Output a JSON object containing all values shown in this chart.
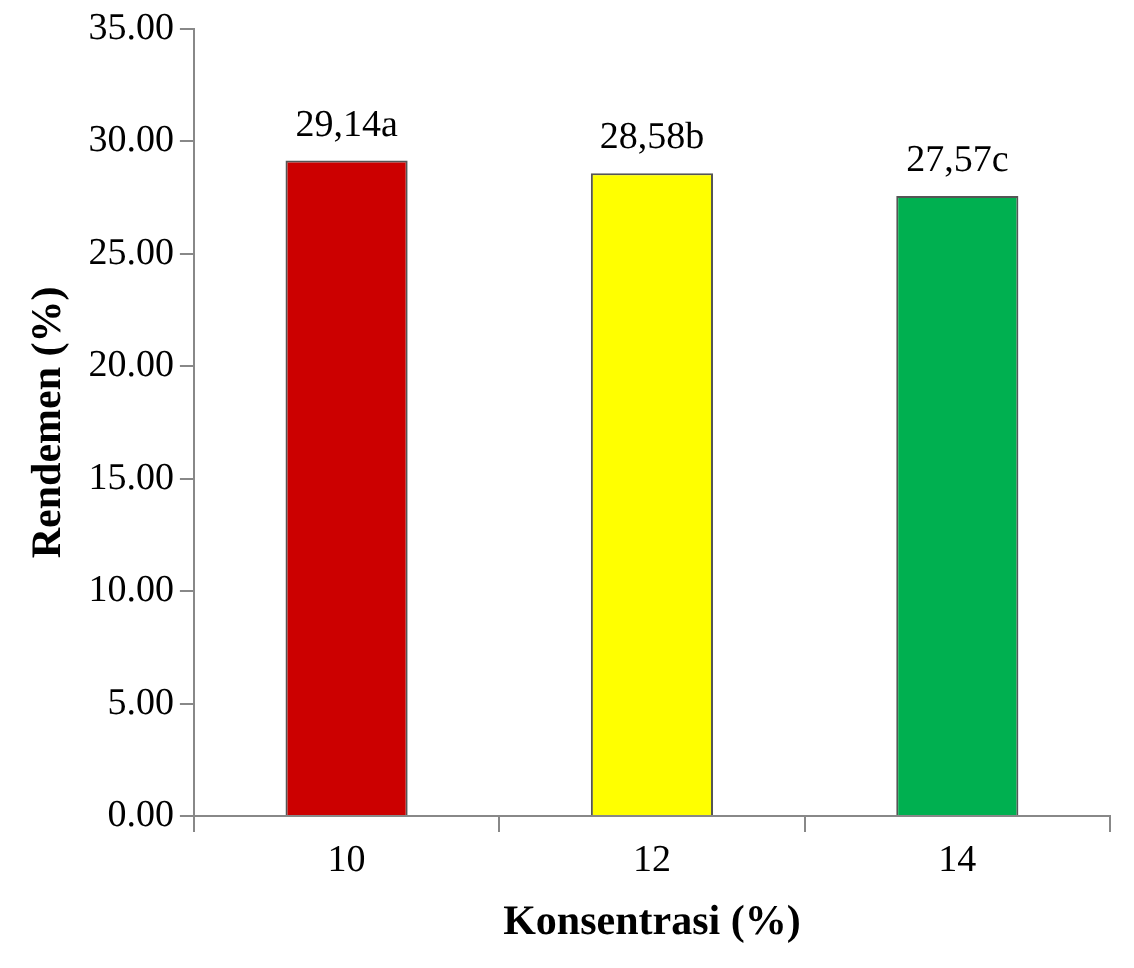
{
  "chart_data": {
    "type": "bar",
    "xlabel": "Konsentrasi (%)",
    "ylabel": "Rendemen (%)",
    "categories": [
      "10",
      "12",
      "14"
    ],
    "values": [
      29.14,
      28.58,
      27.57
    ],
    "colors": [
      "#cc0000",
      "#ffff00",
      "#00b050"
    ],
    "value_labels": [
      "29,14a",
      "28,58b",
      "27,57c"
    ],
    "ylim": [
      0,
      35
    ],
    "yticks": [
      {
        "value": 0,
        "label": "0.00"
      },
      {
        "value": 5,
        "label": "5.00"
      },
      {
        "value": 10,
        "label": "10.00"
      },
      {
        "value": 15,
        "label": "15.00"
      },
      {
        "value": 20,
        "label": "20.00"
      },
      {
        "value": 25,
        "label": "25.00"
      },
      {
        "value": 30,
        "label": "30.00"
      },
      {
        "value": 35,
        "label": "35.00"
      }
    ],
    "grid": false,
    "legend": false
  }
}
